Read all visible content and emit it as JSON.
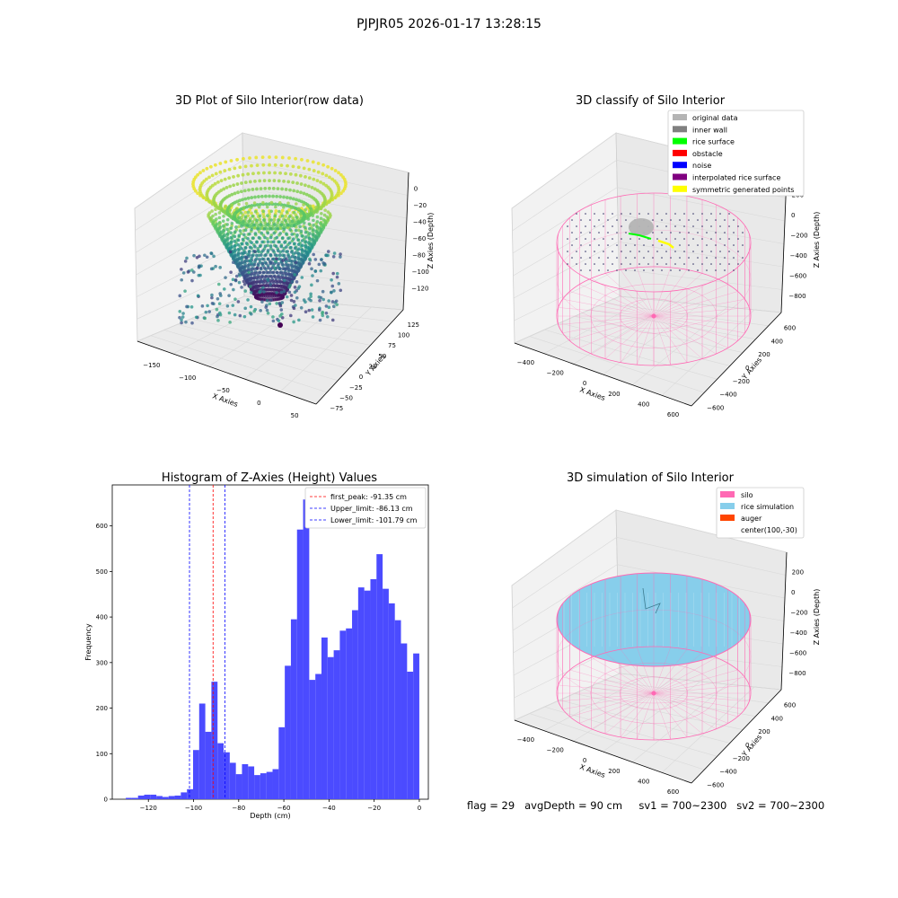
{
  "figure": {
    "title": "PJPJR05 2026-01-17 13:28:15"
  },
  "status_line": "flag = 29   avgDepth = 90 cm     sv1 = 700~2300   sv2 = 700~2300",
  "colors": {
    "histogram": "#4b4bff",
    "first_peak": "#ff0000",
    "limits": "#0000ff",
    "silo": "#ff69b4",
    "rice_simulation": "#87ceeb",
    "auger": "#ff4500",
    "original_data": "#b4b4b4",
    "inner_wall": "#808080",
    "rice_surface": "#00ff00",
    "obstacle": "#ff0000",
    "noise": "#0000ff",
    "interpolated_rice_surface": "#800080",
    "symmetric_generated_points": "#ffff00"
  },
  "chart_data": [
    {
      "type": "scatter",
      "title": "3D Plot of Silo Interior(row data)",
      "xlabel": "X Axies",
      "ylabel": "Y Axies",
      "zlabel": "Z Axies (Depth)",
      "x_ticks": [
        "−150",
        "−100",
        "−50",
        "0",
        "50"
      ],
      "y_ticks": [
        "−75",
        "−50",
        "−25",
        "0",
        "25",
        "50",
        "75",
        "100",
        "125"
      ],
      "z_ticks": [
        "0",
        "−20",
        "−40",
        "−60",
        "−80",
        "−100",
        "−120"
      ],
      "colormap": "viridis",
      "zlim": [
        -130,
        5
      ]
    },
    {
      "type": "scatter",
      "title": "3D classify of Silo Interior",
      "xlabel": "X Axies",
      "ylabel": "Y Axies",
      "zlabel": "Z Axies (Depth)",
      "x_ticks": [
        "−400",
        "−200",
        "0",
        "200",
        "400",
        "600"
      ],
      "y_ticks": [
        "−600",
        "−400",
        "−200",
        "0",
        "200",
        "400",
        "600"
      ],
      "z_ticks": [
        "200",
        "0",
        "−200",
        "−400",
        "−600",
        "−800"
      ],
      "legend": [
        "original data",
        "inner wall",
        "rice surface",
        "obstacle",
        "noise",
        "interpolated rice surface",
        "symmetric generated points"
      ],
      "legend_position": "top-right"
    },
    {
      "type": "bar",
      "title": "Histogram of Z-Axies (Height) Values",
      "xlabel": "Depth (cm)",
      "ylabel": "Frequency",
      "xlim": [
        -136,
        4
      ],
      "ylim": [
        0,
        690
      ],
      "x_ticks": [
        -120,
        -100,
        -80,
        -60,
        -40,
        -20,
        0
      ],
      "y_ticks": [
        0,
        100,
        200,
        300,
        400,
        500,
        600
      ],
      "bins": [
        {
          "x0": -130,
          "x1": -127.5,
          "y": 3
        },
        {
          "x0": -127.5,
          "x1": -125,
          "y": 3
        },
        {
          "x0": -125,
          "x1": -122.5,
          "y": 8
        },
        {
          "x0": -122.5,
          "x1": -120,
          "y": 10
        },
        {
          "x0": -120,
          "x1": -117.5,
          "y": 10
        },
        {
          "x0": -117.5,
          "x1": -115,
          "y": 7
        },
        {
          "x0": -115,
          "x1": -112.5,
          "y": 5
        },
        {
          "x0": -112.5,
          "x1": -110,
          "y": 7
        },
        {
          "x0": -110,
          "x1": -107.5,
          "y": 8
        },
        {
          "x0": -107.5,
          "x1": -105,
          "y": 15
        },
        {
          "x0": -105,
          "x1": -102.5,
          "y": 22
        },
        {
          "x0": -102.5,
          "x1": -100,
          "y": 108
        },
        {
          "x0": -100,
          "x1": -97.5,
          "y": 210
        },
        {
          "x0": -97.5,
          "x1": -95,
          "y": 148
        },
        {
          "x0": -95,
          "x1": -92.5,
          "y": 258
        },
        {
          "x0": -92.5,
          "x1": -90,
          "y": 123
        },
        {
          "x0": -90,
          "x1": -87.5,
          "y": 103
        },
        {
          "x0": -87.5,
          "x1": -85,
          "y": 80
        },
        {
          "x0": -85,
          "x1": -82.5,
          "y": 55
        },
        {
          "x0": -82.5,
          "x1": -80,
          "y": 77
        },
        {
          "x0": -80,
          "x1": -77.5,
          "y": 72
        },
        {
          "x0": -77.5,
          "x1": -75,
          "y": 53
        },
        {
          "x0": -75,
          "x1": -72.5,
          "y": 57
        },
        {
          "x0": -72.5,
          "x1": -70,
          "y": 60
        },
        {
          "x0": -70,
          "x1": -67.5,
          "y": 66
        },
        {
          "x0": -67.5,
          "x1": -65,
          "y": 158
        },
        {
          "x0": -65,
          "x1": -62.5,
          "y": 293
        },
        {
          "x0": -62.5,
          "x1": -60,
          "y": 395
        },
        {
          "x0": -60,
          "x1": -57.5,
          "y": 592
        },
        {
          "x0": -57.5,
          "x1": -55,
          "y": 658
        },
        {
          "x0": -55,
          "x1": -52.5,
          "y": 262
        },
        {
          "x0": -52.5,
          "x1": -50,
          "y": 275
        },
        {
          "x0": -50,
          "x1": -47.5,
          "y": 355
        },
        {
          "x0": -47.5,
          "x1": -45,
          "y": 312
        },
        {
          "x0": -45,
          "x1": -42.5,
          "y": 327
        },
        {
          "x0": -42.5,
          "x1": -40,
          "y": 370
        },
        {
          "x0": -40,
          "x1": -37.5,
          "y": 375
        },
        {
          "x0": -37.5,
          "x1": -35,
          "y": 415
        },
        {
          "x0": -35,
          "x1": -32.5,
          "y": 465
        },
        {
          "x0": -32.5,
          "x1": -30,
          "y": 458
        },
        {
          "x0": -30,
          "x1": -27.5,
          "y": 483
        },
        {
          "x0": -27.5,
          "x1": -25,
          "y": 538
        },
        {
          "x0": -25,
          "x1": -22.5,
          "y": 462
        },
        {
          "x0": -22.5,
          "x1": -20,
          "y": 430
        },
        {
          "x0": -20,
          "x1": -17.5,
          "y": 393
        },
        {
          "x0": -17.5,
          "x1": -15,
          "y": 342
        },
        {
          "x0": -15,
          "x1": -12.5,
          "y": 280
        },
        {
          "x0": -12.5,
          "x1": -10,
          "y": 320
        }
      ],
      "bin_scale": 2.5,
      "vlines": [
        {
          "label": "first_peak: -91.35 cm",
          "x": -91.35,
          "color": "#ff0000"
        },
        {
          "label": "Upper_limit: -86.13 cm",
          "x": -86.13,
          "color": "#0000ff"
        },
        {
          "label": "Lower_limit: -101.79 cm",
          "x": -101.79,
          "color": "#0000ff"
        }
      ],
      "legend_position": "top-right"
    },
    {
      "type": "scatter",
      "title": "3D simulation of Silo Interior",
      "xlabel": "X Axies",
      "ylabel": "Y Axies",
      "zlabel": "Z Axies (Depth)",
      "x_ticks": [
        "−400",
        "−200",
        "0",
        "200",
        "400",
        "600"
      ],
      "y_ticks": [
        "−600",
        "−400",
        "−200",
        "0",
        "200",
        "400",
        "600"
      ],
      "z_ticks": [
        "200",
        "0",
        "−200",
        "−400",
        "−600",
        "−800"
      ],
      "legend": [
        "silo",
        "rice simulation",
        "auger",
        "center(100,-30)"
      ],
      "legend_position": "top-right"
    }
  ]
}
